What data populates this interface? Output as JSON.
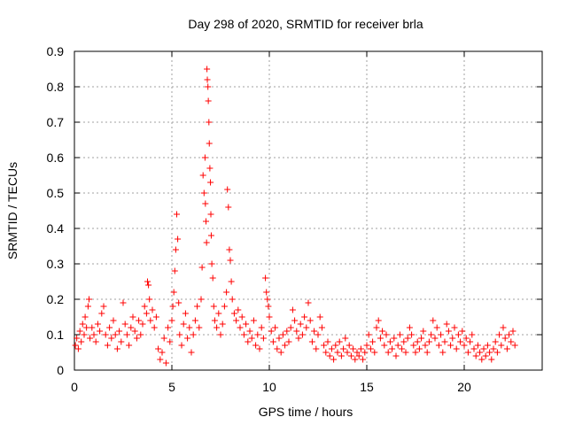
{
  "chart_data": {
    "type": "scatter",
    "title": "Day 298 of 2020, SRMTID for receiver brla",
    "xlabel": "GPS time / hours",
    "ylabel": "SRMTID / TECUs",
    "xlim": [
      0,
      24
    ],
    "ylim": [
      0,
      0.9
    ],
    "x_ticks": [
      0,
      5,
      10,
      15,
      20
    ],
    "x_tick_labels": [
      "0",
      "5",
      "10",
      "15",
      "20"
    ],
    "y_ticks": [
      0,
      0.1,
      0.2,
      0.3,
      0.4,
      0.5,
      0.6,
      0.7,
      0.8,
      0.9
    ],
    "y_tick_labels": [
      "0",
      "0.1",
      "0.2",
      "0.3",
      "0.4",
      "0.5",
      "0.6",
      "0.7",
      "0.8",
      "0.9"
    ],
    "grid": true,
    "marker": "+",
    "marker_color": "#ff0000",
    "series": [
      {
        "name": "SRMTID",
        "points": [
          [
            0.05,
            0.07
          ],
          [
            0.12,
            0.09
          ],
          [
            0.2,
            0.06
          ],
          [
            0.28,
            0.11
          ],
          [
            0.35,
            0.08
          ],
          [
            0.42,
            0.13
          ],
          [
            0.5,
            0.1
          ],
          [
            0.55,
            0.15
          ],
          [
            0.62,
            0.12
          ],
          [
            0.7,
            0.18
          ],
          [
            0.75,
            0.2
          ],
          [
            0.8,
            0.09
          ],
          [
            0.9,
            0.12
          ],
          [
            1.0,
            0.1
          ],
          [
            1.1,
            0.08
          ],
          [
            1.2,
            0.13
          ],
          [
            1.3,
            0.11
          ],
          [
            1.4,
            0.16
          ],
          [
            1.5,
            0.18
          ],
          [
            1.6,
            0.1
          ],
          [
            1.7,
            0.07
          ],
          [
            1.8,
            0.12
          ],
          [
            1.9,
            0.09
          ],
          [
            2.0,
            0.14
          ],
          [
            2.1,
            0.1
          ],
          [
            2.2,
            0.06
          ],
          [
            2.3,
            0.11
          ],
          [
            2.4,
            0.08
          ],
          [
            2.5,
            0.19
          ],
          [
            2.6,
            0.13
          ],
          [
            2.7,
            0.1
          ],
          [
            2.8,
            0.07
          ],
          [
            2.9,
            0.12
          ],
          [
            3.0,
            0.15
          ],
          [
            3.1,
            0.11
          ],
          [
            3.2,
            0.09
          ],
          [
            3.3,
            0.14
          ],
          [
            3.4,
            0.1
          ],
          [
            3.5,
            0.13
          ],
          [
            3.6,
            0.18
          ],
          [
            3.7,
            0.16
          ],
          [
            3.75,
            0.25
          ],
          [
            3.8,
            0.24
          ],
          [
            3.85,
            0.2
          ],
          [
            3.9,
            0.14
          ],
          [
            4.0,
            0.17
          ],
          [
            4.1,
            0.12
          ],
          [
            4.2,
            0.15
          ],
          [
            4.3,
            0.06
          ],
          [
            4.4,
            0.03
          ],
          [
            4.5,
            0.05
          ],
          [
            4.6,
            0.09
          ],
          [
            4.7,
            0.02
          ],
          [
            4.8,
            0.12
          ],
          [
            4.9,
            0.08
          ],
          [
            5.0,
            0.14
          ],
          [
            5.05,
            0.18
          ],
          [
            5.1,
            0.22
          ],
          [
            5.15,
            0.28
          ],
          [
            5.2,
            0.34
          ],
          [
            5.25,
            0.44
          ],
          [
            5.3,
            0.37
          ],
          [
            5.35,
            0.19
          ],
          [
            5.4,
            0.1
          ],
          [
            5.5,
            0.07
          ],
          [
            5.6,
            0.13
          ],
          [
            5.7,
            0.16
          ],
          [
            5.8,
            0.09
          ],
          [
            5.9,
            0.12
          ],
          [
            6.0,
            0.05
          ],
          [
            6.1,
            0.1
          ],
          [
            6.2,
            0.14
          ],
          [
            6.3,
            0.18
          ],
          [
            6.4,
            0.12
          ],
          [
            6.5,
            0.2
          ],
          [
            6.55,
            0.29
          ],
          [
            6.6,
            0.55
          ],
          [
            6.65,
            0.5
          ],
          [
            6.7,
            0.6
          ],
          [
            6.72,
            0.47
          ],
          [
            6.75,
            0.42
          ],
          [
            6.78,
            0.36
          ],
          [
            6.8,
            0.85
          ],
          [
            6.82,
            0.82
          ],
          [
            6.85,
            0.8
          ],
          [
            6.87,
            0.76
          ],
          [
            6.9,
            0.7
          ],
          [
            6.92,
            0.64
          ],
          [
            6.95,
            0.57
          ],
          [
            6.98,
            0.53
          ],
          [
            7.0,
            0.44
          ],
          [
            7.02,
            0.38
          ],
          [
            7.05,
            0.3
          ],
          [
            7.1,
            0.26
          ],
          [
            7.15,
            0.18
          ],
          [
            7.2,
            0.14
          ],
          [
            7.3,
            0.12
          ],
          [
            7.4,
            0.16
          ],
          [
            7.5,
            0.1
          ],
          [
            7.6,
            0.13
          ],
          [
            7.7,
            0.18
          ],
          [
            7.8,
            0.22
          ],
          [
            7.85,
            0.51
          ],
          [
            7.9,
            0.46
          ],
          [
            7.95,
            0.34
          ],
          [
            8.0,
            0.31
          ],
          [
            8.05,
            0.25
          ],
          [
            8.1,
            0.2
          ],
          [
            8.2,
            0.16
          ],
          [
            8.3,
            0.14
          ],
          [
            8.4,
            0.17
          ],
          [
            8.5,
            0.12
          ],
          [
            8.6,
            0.15
          ],
          [
            8.7,
            0.1
          ],
          [
            8.8,
            0.13
          ],
          [
            8.9,
            0.08
          ],
          [
            9.0,
            0.11
          ],
          [
            9.1,
            0.09
          ],
          [
            9.2,
            0.14
          ],
          [
            9.3,
            0.07
          ],
          [
            9.4,
            0.1
          ],
          [
            9.5,
            0.06
          ],
          [
            9.6,
            0.12
          ],
          [
            9.7,
            0.09
          ],
          [
            9.8,
            0.26
          ],
          [
            9.85,
            0.22
          ],
          [
            9.9,
            0.2
          ],
          [
            9.95,
            0.18
          ],
          [
            10.0,
            0.15
          ],
          [
            10.1,
            0.11
          ],
          [
            10.2,
            0.08
          ],
          [
            10.3,
            0.12
          ],
          [
            10.4,
            0.06
          ],
          [
            10.5,
            0.09
          ],
          [
            10.6,
            0.05
          ],
          [
            10.7,
            0.1
          ],
          [
            10.8,
            0.07
          ],
          [
            10.9,
            0.11
          ],
          [
            11.0,
            0.08
          ],
          [
            11.1,
            0.12
          ],
          [
            11.2,
            0.17
          ],
          [
            11.3,
            0.14
          ],
          [
            11.4,
            0.11
          ],
          [
            11.5,
            0.09
          ],
          [
            11.6,
            0.13
          ],
          [
            11.7,
            0.1
          ],
          [
            11.8,
            0.15
          ],
          [
            11.9,
            0.12
          ],
          [
            12.0,
            0.19
          ],
          [
            12.1,
            0.14
          ],
          [
            12.2,
            0.08
          ],
          [
            12.3,
            0.11
          ],
          [
            12.4,
            0.06
          ],
          [
            12.5,
            0.1
          ],
          [
            12.6,
            0.15
          ],
          [
            12.7,
            0.12
          ],
          [
            12.8,
            0.07
          ],
          [
            12.9,
            0.05
          ],
          [
            13.0,
            0.08
          ],
          [
            13.1,
            0.04
          ],
          [
            13.2,
            0.06
          ],
          [
            13.3,
            0.03
          ],
          [
            13.4,
            0.07
          ],
          [
            13.5,
            0.05
          ],
          [
            13.6,
            0.08
          ],
          [
            13.7,
            0.04
          ],
          [
            13.8,
            0.06
          ],
          [
            13.9,
            0.09
          ],
          [
            14.0,
            0.05
          ],
          [
            14.1,
            0.07
          ],
          [
            14.2,
            0.04
          ],
          [
            14.3,
            0.06
          ],
          [
            14.4,
            0.03
          ],
          [
            14.5,
            0.05
          ],
          [
            14.6,
            0.04
          ],
          [
            14.7,
            0.06
          ],
          [
            14.8,
            0.03
          ],
          [
            14.9,
            0.05
          ],
          [
            15.0,
            0.07
          ],
          [
            15.1,
            0.1
          ],
          [
            15.2,
            0.06
          ],
          [
            15.3,
            0.08
          ],
          [
            15.4,
            0.05
          ],
          [
            15.5,
            0.12
          ],
          [
            15.6,
            0.14
          ],
          [
            15.7,
            0.09
          ],
          [
            15.8,
            0.11
          ],
          [
            15.9,
            0.07
          ],
          [
            16.0,
            0.1
          ],
          [
            16.1,
            0.05
          ],
          [
            16.2,
            0.08
          ],
          [
            16.3,
            0.06
          ],
          [
            16.4,
            0.09
          ],
          [
            16.5,
            0.04
          ],
          [
            16.6,
            0.07
          ],
          [
            16.7,
            0.1
          ],
          [
            16.8,
            0.06
          ],
          [
            16.9,
            0.08
          ],
          [
            17.0,
            0.05
          ],
          [
            17.1,
            0.09
          ],
          [
            17.2,
            0.12
          ],
          [
            17.3,
            0.1
          ],
          [
            17.4,
            0.07
          ],
          [
            17.5,
            0.05
          ],
          [
            17.6,
            0.08
          ],
          [
            17.7,
            0.06
          ],
          [
            17.8,
            0.09
          ],
          [
            17.9,
            0.11
          ],
          [
            18.0,
            0.07
          ],
          [
            18.1,
            0.05
          ],
          [
            18.2,
            0.08
          ],
          [
            18.3,
            0.1
          ],
          [
            18.4,
            0.14
          ],
          [
            18.5,
            0.09
          ],
          [
            18.6,
            0.12
          ],
          [
            18.7,
            0.07
          ],
          [
            18.8,
            0.1
          ],
          [
            18.9,
            0.05
          ],
          [
            19.0,
            0.08
          ],
          [
            19.1,
            0.13
          ],
          [
            19.2,
            0.11
          ],
          [
            19.3,
            0.07
          ],
          [
            19.4,
            0.09
          ],
          [
            19.5,
            0.12
          ],
          [
            19.6,
            0.06
          ],
          [
            19.7,
            0.1
          ],
          [
            19.8,
            0.08
          ],
          [
            19.9,
            0.11
          ],
          [
            20.0,
            0.07
          ],
          [
            20.1,
            0.09
          ],
          [
            20.2,
            0.05
          ],
          [
            20.3,
            0.08
          ],
          [
            20.4,
            0.1
          ],
          [
            20.5,
            0.06
          ],
          [
            20.6,
            0.04
          ],
          [
            20.7,
            0.07
          ],
          [
            20.8,
            0.05
          ],
          [
            20.9,
            0.03
          ],
          [
            21.0,
            0.06
          ],
          [
            21.1,
            0.04
          ],
          [
            21.2,
            0.07
          ],
          [
            21.3,
            0.05
          ],
          [
            21.4,
            0.03
          ],
          [
            21.5,
            0.06
          ],
          [
            21.6,
            0.08
          ],
          [
            21.7,
            0.05
          ],
          [
            21.8,
            0.1
          ],
          [
            21.9,
            0.07
          ],
          [
            22.0,
            0.12
          ],
          [
            22.1,
            0.09
          ],
          [
            22.2,
            0.06
          ],
          [
            22.3,
            0.1
          ],
          [
            22.4,
            0.08
          ],
          [
            22.5,
            0.11
          ],
          [
            22.6,
            0.07
          ]
        ]
      }
    ]
  }
}
